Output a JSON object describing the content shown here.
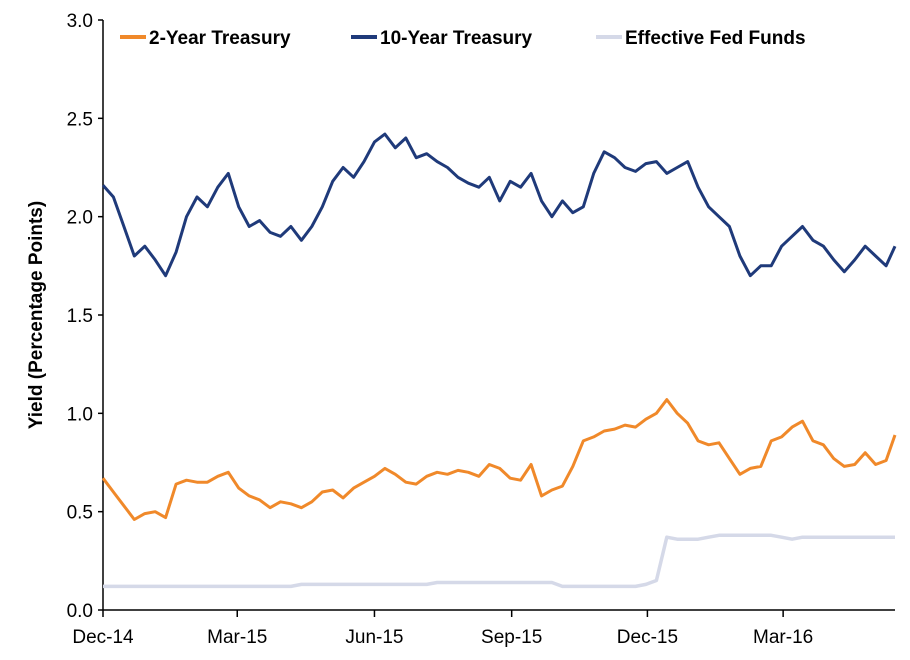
{
  "chart_data": {
    "type": "line",
    "title": "",
    "xlabel": "",
    "ylabel": "Yield (Percentage Points)",
    "ylim": [
      0,
      3
    ],
    "yticks": [
      "0.0",
      "0.5",
      "1.0",
      "1.5",
      "2.0",
      "2.5",
      "3.0"
    ],
    "xticks": [
      "Dec-14",
      "Mar-15",
      "Jun-15",
      "Sep-15",
      "Dec-15",
      "Mar-16"
    ],
    "xlim": [
      "2014-12-01",
      "2016-05-15"
    ],
    "grid": false,
    "legend_position": "top",
    "x": [
      "2014-12-01",
      "2014-12-08",
      "2014-12-15",
      "2014-12-22",
      "2014-12-29",
      "2015-01-05",
      "2015-01-12",
      "2015-01-19",
      "2015-01-26",
      "2015-02-02",
      "2015-02-09",
      "2015-02-16",
      "2015-02-23",
      "2015-03-02",
      "2015-03-09",
      "2015-03-16",
      "2015-03-23",
      "2015-03-30",
      "2015-04-06",
      "2015-04-13",
      "2015-04-20",
      "2015-04-27",
      "2015-05-04",
      "2015-05-11",
      "2015-05-18",
      "2015-05-25",
      "2015-06-01",
      "2015-06-08",
      "2015-06-15",
      "2015-06-22",
      "2015-06-29",
      "2015-07-06",
      "2015-07-13",
      "2015-07-20",
      "2015-07-27",
      "2015-08-03",
      "2015-08-10",
      "2015-08-17",
      "2015-08-24",
      "2015-08-31",
      "2015-09-07",
      "2015-09-14",
      "2015-09-21",
      "2015-09-28",
      "2015-10-05",
      "2015-10-12",
      "2015-10-19",
      "2015-10-26",
      "2015-11-02",
      "2015-11-09",
      "2015-11-16",
      "2015-11-23",
      "2015-11-30",
      "2015-12-07",
      "2015-12-14",
      "2015-12-21",
      "2015-12-28",
      "2016-01-04",
      "2016-01-11",
      "2016-01-18",
      "2016-01-25",
      "2016-02-01",
      "2016-02-08",
      "2016-02-15",
      "2016-02-22",
      "2016-02-29",
      "2016-03-07",
      "2016-03-14",
      "2016-03-21",
      "2016-03-28",
      "2016-04-04",
      "2016-04-11",
      "2016-04-18",
      "2016-04-25",
      "2016-05-02",
      "2016-05-09",
      "2016-05-15"
    ],
    "series": [
      {
        "name": "2-Year Treasury",
        "color": "#f0892a",
        "values": [
          0.67,
          0.6,
          0.53,
          0.46,
          0.49,
          0.5,
          0.47,
          0.64,
          0.66,
          0.65,
          0.65,
          0.68,
          0.7,
          0.62,
          0.58,
          0.56,
          0.52,
          0.55,
          0.54,
          0.52,
          0.55,
          0.6,
          0.61,
          0.57,
          0.62,
          0.65,
          0.68,
          0.72,
          0.69,
          0.65,
          0.64,
          0.68,
          0.7,
          0.69,
          0.71,
          0.7,
          0.68,
          0.74,
          0.72,
          0.67,
          0.66,
          0.74,
          0.58,
          0.61,
          0.63,
          0.73,
          0.86,
          0.88,
          0.91,
          0.92,
          0.94,
          0.93,
          0.97,
          1.0,
          1.07,
          1.0,
          0.95,
          0.86,
          0.84,
          0.85,
          0.77,
          0.69,
          0.72,
          0.73,
          0.86,
          0.88,
          0.93,
          0.96,
          0.86,
          0.84,
          0.77,
          0.73,
          0.74,
          0.8,
          0.74,
          0.76,
          0.89
        ]
      },
      {
        "name": "10-Year Treasury",
        "color": "#1f3a7a",
        "values": [
          2.16,
          2.1,
          1.95,
          1.8,
          1.85,
          1.78,
          1.7,
          1.82,
          2.0,
          2.1,
          2.05,
          2.15,
          2.22,
          2.05,
          1.95,
          1.98,
          1.92,
          1.9,
          1.95,
          1.88,
          1.95,
          2.05,
          2.18,
          2.25,
          2.2,
          2.28,
          2.38,
          2.42,
          2.35,
          2.4,
          2.3,
          2.32,
          2.28,
          2.25,
          2.2,
          2.17,
          2.15,
          2.2,
          2.08,
          2.18,
          2.15,
          2.22,
          2.08,
          2.0,
          2.08,
          2.02,
          2.05,
          2.22,
          2.33,
          2.3,
          2.25,
          2.23,
          2.27,
          2.28,
          2.22,
          2.25,
          2.28,
          2.15,
          2.05,
          2.0,
          1.95,
          1.8,
          1.7,
          1.75,
          1.75,
          1.85,
          1.9,
          1.95,
          1.88,
          1.85,
          1.78,
          1.72,
          1.78,
          1.85,
          1.8,
          1.75,
          1.85
        ]
      },
      {
        "name": "Effective Fed Funds",
        "color": "#d5d9e8",
        "values": [
          0.12,
          0.12,
          0.12,
          0.12,
          0.12,
          0.12,
          0.12,
          0.12,
          0.12,
          0.12,
          0.12,
          0.12,
          0.12,
          0.12,
          0.12,
          0.12,
          0.12,
          0.12,
          0.12,
          0.13,
          0.13,
          0.13,
          0.13,
          0.13,
          0.13,
          0.13,
          0.13,
          0.13,
          0.13,
          0.13,
          0.13,
          0.13,
          0.14,
          0.14,
          0.14,
          0.14,
          0.14,
          0.14,
          0.14,
          0.14,
          0.14,
          0.14,
          0.14,
          0.14,
          0.12,
          0.12,
          0.12,
          0.12,
          0.12,
          0.12,
          0.12,
          0.12,
          0.13,
          0.15,
          0.37,
          0.36,
          0.36,
          0.36,
          0.37,
          0.38,
          0.38,
          0.38,
          0.38,
          0.38,
          0.38,
          0.37,
          0.36,
          0.37,
          0.37,
          0.37,
          0.37,
          0.37,
          0.37,
          0.37,
          0.37,
          0.37,
          0.37
        ]
      }
    ]
  }
}
